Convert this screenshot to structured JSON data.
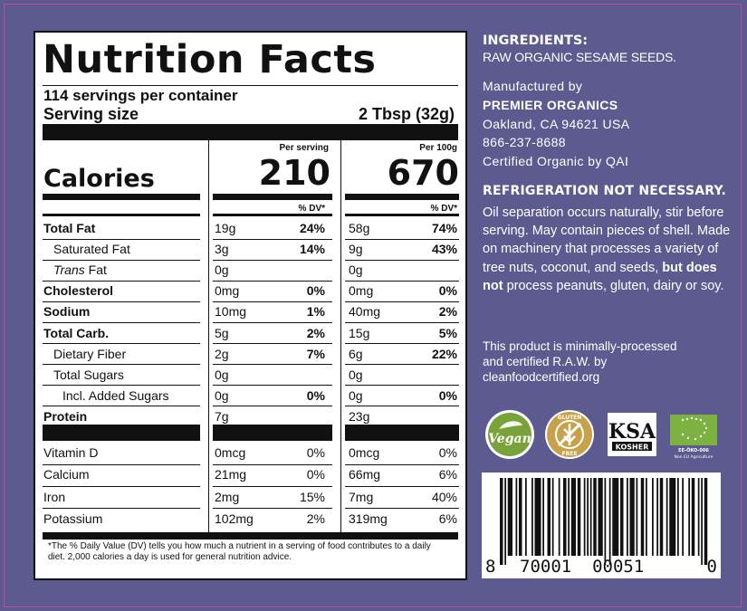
{
  "panel": {
    "title": "Nutrition Facts",
    "servings": "114 servings per container",
    "serving_size_label": "Serving size",
    "serving_size_value": "2 Tbsp (32g)",
    "col_per_serving": "Per serving",
    "col_per_100g": "Per 100g",
    "calories_label": "Calories",
    "calories_serving": "210",
    "calories_100g": "670",
    "dv_header": "% DV*",
    "rows": [
      {
        "label": "Total Fat",
        "bold": true,
        "indent": 0,
        "a1": "19g",
        "p1": "24%",
        "a2": "58g",
        "p2": "74%"
      },
      {
        "label": "Saturated Fat",
        "bold": false,
        "indent": 1,
        "a1": "3g",
        "p1": "14%",
        "a2": "9g",
        "p2": "43%"
      },
      {
        "label": "Fat",
        "prefix": "Trans",
        "bold": false,
        "indent": 1,
        "a1": "0g",
        "p1": "",
        "a2": "0g",
        "p2": ""
      },
      {
        "label": "Cholesterol",
        "bold": true,
        "indent": 0,
        "a1": "0mg",
        "p1": "0%",
        "a2": "0mg",
        "p2": "0%"
      },
      {
        "label": "Sodium",
        "bold": true,
        "indent": 0,
        "a1": "10mg",
        "p1": "1%",
        "a2": "40mg",
        "p2": "2%"
      },
      {
        "label": "Total Carb.",
        "bold": true,
        "indent": 0,
        "a1": "5g",
        "p1": "2%",
        "a2": "15g",
        "p2": "5%"
      },
      {
        "label": "Dietary Fiber",
        "bold": false,
        "indent": 1,
        "a1": "2g",
        "p1": "7%",
        "a2": "6g",
        "p2": "22%"
      },
      {
        "label": "Total Sugars",
        "bold": false,
        "indent": 1,
        "a1": "0g",
        "p1": "",
        "a2": "0g",
        "p2": ""
      },
      {
        "label": "Incl. Added Sugars",
        "bold": false,
        "indent": 2,
        "a1": "0g",
        "p1": "0%",
        "a2": "0g",
        "p2": "0%"
      },
      {
        "label": "Protein",
        "bold": true,
        "indent": 0,
        "a1": "7g",
        "p1": "",
        "a2": "23g",
        "p2": ""
      }
    ],
    "vitamins": [
      {
        "label": "Vitamin D",
        "a1": "0mcg",
        "p1": "0%",
        "a2": "0mcg",
        "p2": "0%"
      },
      {
        "label": "Calcium",
        "a1": "21mg",
        "p1": "0%",
        "a2": "66mg",
        "p2": "6%"
      },
      {
        "label": "Iron",
        "a1": "2mg",
        "p1": "15%",
        "a2": "7mg",
        "p2": "40%"
      },
      {
        "label": "Potassium",
        "a1": "102mg",
        "p1": "2%",
        "a2": "319mg",
        "p2": "6%"
      }
    ],
    "footnote": "*The % Daily Value (DV) tells you how much a nutrient in a serving of food contributes to a daily diet. 2,000 calories a day is used for general nutrition advice."
  },
  "ingredients": {
    "heading": "INGREDIENTS:",
    "text": "RAW ORGANIC SESAME SEEDS."
  },
  "manufacturer": {
    "line1": "Manufactured by",
    "name": "PREMIER ORGANICS",
    "address": "Oakland, CA 94621 USA",
    "phone": "866-237-8688",
    "certified": "Certified Organic by QAI"
  },
  "refrigeration": "REFRIGERATION NOT NECESSARY.",
  "oil_note": {
    "part1": "Oil separation occurs naturally, stir before serving. May contain pieces of shell. Made on machinery that processes a variety of tree nuts, coconut, and seeds,",
    "bold": "but does not",
    "part2": "process peanuts, gluten, dairy or soy."
  },
  "raw_note": "This product is minimally-processed and certified R.A.W. by cleanfoodcertified.org",
  "badges": {
    "vegan": "Vegan",
    "gluten_top": "GLUTEN",
    "gluten_bottom": "FREE",
    "ksa": "KSA",
    "kosher": "KOSHER",
    "eu_code": "EE-ÖKO-006",
    "eu_text": "Non EU Agriculture",
    "icons": [
      "vegan-leaf-icon",
      "gluten-free-icon",
      "ksa-kosher-icon",
      "eu-organic-leaf-icon"
    ]
  },
  "barcode": {
    "digits_left": "8",
    "digits_mid": "70001  00051",
    "digits_right": "0"
  },
  "colors": {
    "background": "#5c5a8f",
    "panel": "#ffffff",
    "vegan": "#7aa23a",
    "gluten": "#c8a24a",
    "eu_green": "#7bb241"
  }
}
